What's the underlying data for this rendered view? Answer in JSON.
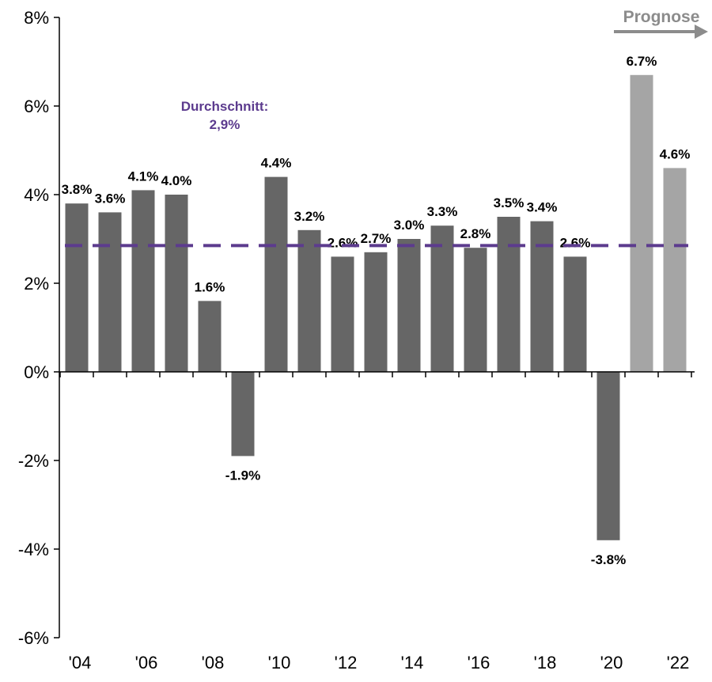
{
  "chart_data": {
    "type": "bar",
    "title": "",
    "xlabel": "",
    "ylabel": "",
    "ylim": [
      -6,
      8
    ],
    "yticks": [
      -6,
      -4,
      -2,
      0,
      2,
      4,
      6,
      8
    ],
    "ytick_labels": [
      "-6%",
      "-4%",
      "-2%",
      "0%",
      "2%",
      "4%",
      "6%",
      "8%"
    ],
    "categories": [
      "'04",
      "'05",
      "'06",
      "'07",
      "'08",
      "'09",
      "'10",
      "'11",
      "'12",
      "'13",
      "'14",
      "'15",
      "'16",
      "'17",
      "'18",
      "'19",
      "'20",
      "'21",
      "'22"
    ],
    "xtick_labels_shown": [
      "'04",
      "'06",
      "'08",
      "'10",
      "'12",
      "'14",
      "'16",
      "'18",
      "'20",
      "'22"
    ],
    "values": [
      3.8,
      3.6,
      4.1,
      4.0,
      1.6,
      -1.9,
      4.4,
      3.2,
      2.6,
      2.7,
      3.0,
      3.3,
      2.8,
      3.5,
      3.4,
      2.6,
      -3.8,
      6.7,
      4.6
    ],
    "data_labels": [
      "3.8%",
      "3.6%",
      "4.1%",
      "4.0%",
      "1.6%",
      "-1.9%",
      "4.4%",
      "3.2%",
      "2.6%",
      "2.7%",
      "3.0%",
      "3.3%",
      "2.8%",
      "3.5%",
      "3.4%",
      "2.6%",
      "-3.8%",
      "6.7%",
      "4.6%"
    ],
    "forecast": [
      false,
      false,
      false,
      false,
      false,
      false,
      false,
      false,
      false,
      false,
      false,
      false,
      false,
      false,
      false,
      false,
      false,
      true,
      true
    ],
    "average": {
      "value": 2.85,
      "label_line1": "Durchschnitt:",
      "label_line2": "2,9%"
    },
    "forecast_label": "Prognose",
    "grid": false,
    "colors": {
      "bar": "#666666",
      "forecast_bar": "#a5a5a5",
      "average": "#5c3b8e",
      "forecast_label": "#8c8c8c",
      "text": "#000000"
    }
  }
}
